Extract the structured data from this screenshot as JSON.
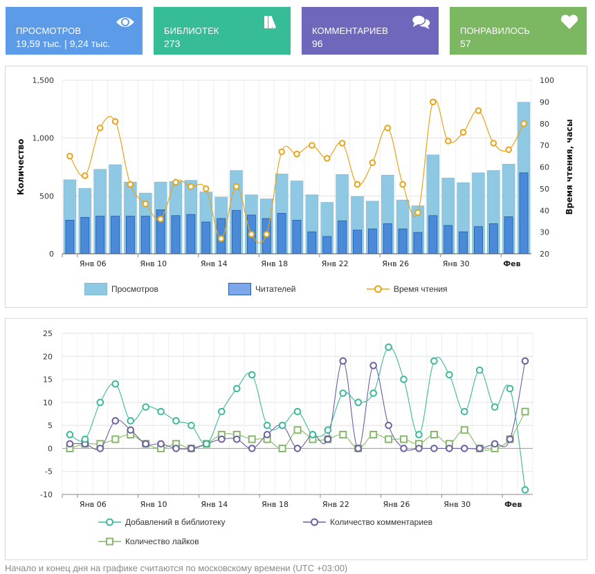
{
  "stat_cards": [
    {
      "label": "ПРОСМОТРОВ",
      "value": "19,59 тыс. | 9,24 тыс.",
      "icon": "eye-icon",
      "color": "#5b9be8"
    },
    {
      "label": "БИБЛИОТЕК",
      "value": "273",
      "icon": "books-icon",
      "color": "#37bc98"
    },
    {
      "label": "КОММЕНТАРИЕВ",
      "value": "96",
      "icon": "comments-icon",
      "color": "#6f67bb"
    },
    {
      "label": "ПОНРАВИЛОСЬ",
      "value": "57",
      "icon": "heart-icon",
      "color": "#7cb862"
    }
  ],
  "footnote": "Начало и конец дня на графике считаются по московскому времени (UTC +03:00)",
  "chart_data": [
    {
      "type": "bar",
      "title": "",
      "xlabel": "",
      "ylabel": "Количество",
      "y2label": "Время чтения, часы",
      "ylim": [
        0,
        1500
      ],
      "y2lim": [
        20,
        100
      ],
      "yticks": [
        "0",
        "500",
        "1,000",
        "1,500"
      ],
      "y2ticks": [
        "20",
        "30",
        "40",
        "50",
        "60",
        "70",
        "80",
        "90",
        "100"
      ],
      "x_tick_labels": [
        {
          "index": 1,
          "label": "Янв 06",
          "bold": false
        },
        {
          "index": 5,
          "label": "Янв 10",
          "bold": false
        },
        {
          "index": 9,
          "label": "Янв 14",
          "bold": false
        },
        {
          "index": 13,
          "label": "Янв 18",
          "bold": false
        },
        {
          "index": 17,
          "label": "Янв 22",
          "bold": false
        },
        {
          "index": 21,
          "label": "Янв 26",
          "bold": false
        },
        {
          "index": 25,
          "label": "Янв 30",
          "bold": false
        },
        {
          "index": 29,
          "label": "Фев",
          "bold": true
        }
      ],
      "categories": [
        "Янв 05",
        "Янв 06",
        "Янв 07",
        "Янв 08",
        "Янв 09",
        "Янв 10",
        "Янв 11",
        "Янв 12",
        "Янв 13",
        "Янв 14",
        "Янв 15",
        "Янв 16",
        "Янв 17",
        "Янв 18",
        "Янв 19",
        "Янв 20",
        "Янв 21",
        "Янв 22",
        "Янв 23",
        "Янв 24",
        "Янв 25",
        "Янв 26",
        "Янв 27",
        "Янв 28",
        "Янв 29",
        "Янв 30",
        "Янв 31",
        "Фев 01",
        "Фев 02",
        "Фев 03",
        "Фев 04"
      ],
      "grid": true,
      "legend_position": "bottom",
      "series": [
        {
          "name": "Просмотров",
          "kind": "bar",
          "axis": "left",
          "color": "#8ec8e2",
          "values": [
            640,
            565,
            730,
            770,
            620,
            525,
            620,
            625,
            635,
            535,
            490,
            720,
            510,
            475,
            690,
            630,
            510,
            445,
            685,
            495,
            455,
            680,
            465,
            415,
            855,
            655,
            615,
            700,
            720,
            775,
            1310
          ]
        },
        {
          "name": "Читателей",
          "kind": "bar",
          "axis": "left",
          "color": "#4a8ad8",
          "values": [
            290,
            315,
            325,
            325,
            325,
            325,
            380,
            330,
            340,
            275,
            305,
            375,
            335,
            305,
            350,
            290,
            190,
            150,
            285,
            205,
            215,
            260,
            215,
            185,
            330,
            245,
            190,
            235,
            260,
            320,
            700
          ]
        },
        {
          "name": "Время чтения",
          "kind": "line",
          "axis": "right",
          "color": "#e8a317",
          "values": [
            65,
            56,
            78,
            81,
            52,
            43,
            36,
            53,
            51,
            50,
            27,
            51,
            29,
            29,
            67,
            66,
            70,
            64,
            71,
            52,
            62,
            78,
            52,
            39,
            90,
            72,
            76,
            86,
            71,
            68,
            80
          ]
        }
      ]
    },
    {
      "type": "line",
      "title": "",
      "xlabel": "",
      "ylabel": "",
      "ylim": [
        -10,
        25
      ],
      "yticks": [
        "-10",
        "-5",
        "0",
        "5",
        "10",
        "15",
        "20",
        "25"
      ],
      "x_tick_labels": [
        {
          "index": 1,
          "label": "Янв 06",
          "bold": false
        },
        {
          "index": 5,
          "label": "Янв 10",
          "bold": false
        },
        {
          "index": 9,
          "label": "Янв 14",
          "bold": false
        },
        {
          "index": 13,
          "label": "Янв 18",
          "bold": false
        },
        {
          "index": 17,
          "label": "Янв 22",
          "bold": false
        },
        {
          "index": 21,
          "label": "Янв 26",
          "bold": false
        },
        {
          "index": 25,
          "label": "Янв 30",
          "bold": false
        },
        {
          "index": 29,
          "label": "Фев",
          "bold": true
        }
      ],
      "categories": [
        "Янв 05",
        "Янв 06",
        "Янв 07",
        "Янв 08",
        "Янв 09",
        "Янв 10",
        "Янв 11",
        "Янв 12",
        "Янв 13",
        "Янв 14",
        "Янв 15",
        "Янв 16",
        "Янв 17",
        "Янв 18",
        "Янв 19",
        "Янв 20",
        "Янв 21",
        "Янв 22",
        "Янв 23",
        "Янв 24",
        "Янв 25",
        "Янв 26",
        "Янв 27",
        "Янв 28",
        "Янв 29",
        "Янв 30",
        "Янв 31",
        "Фев 01",
        "Фев 02",
        "Фев 03",
        "Фев 04"
      ],
      "grid": true,
      "legend_position": "bottom",
      "series": [
        {
          "name": "Добавлений в библиотеку",
          "marker": "circle",
          "color": "#3cb89a",
          "values": [
            3,
            2,
            10,
            14,
            6,
            9,
            8,
            6,
            5,
            1,
            8,
            13,
            16,
            5,
            5,
            8,
            3,
            4,
            12,
            10,
            12,
            22,
            15,
            3,
            19,
            16,
            8,
            17,
            9,
            13,
            -9
          ]
        },
        {
          "name": "Количество комментариев",
          "marker": "circle",
          "color": "#6a5f9f",
          "values": [
            1,
            1,
            0,
            6,
            4,
            1,
            1,
            0,
            0,
            1,
            2,
            2,
            0,
            3,
            5,
            0,
            3,
            2,
            19,
            0,
            18,
            5,
            0,
            0,
            0,
            0,
            0,
            0,
            1,
            2,
            19
          ]
        },
        {
          "name": "Количество лайков",
          "marker": "square",
          "color": "#86b86a",
          "values": [
            0,
            1,
            1,
            2,
            3,
            1,
            0,
            1,
            0,
            1,
            3,
            3,
            2,
            2,
            0,
            4,
            2,
            2,
            3,
            0,
            3,
            2,
            2,
            1,
            3,
            1,
            4,
            0,
            0,
            2,
            8
          ]
        }
      ]
    }
  ]
}
